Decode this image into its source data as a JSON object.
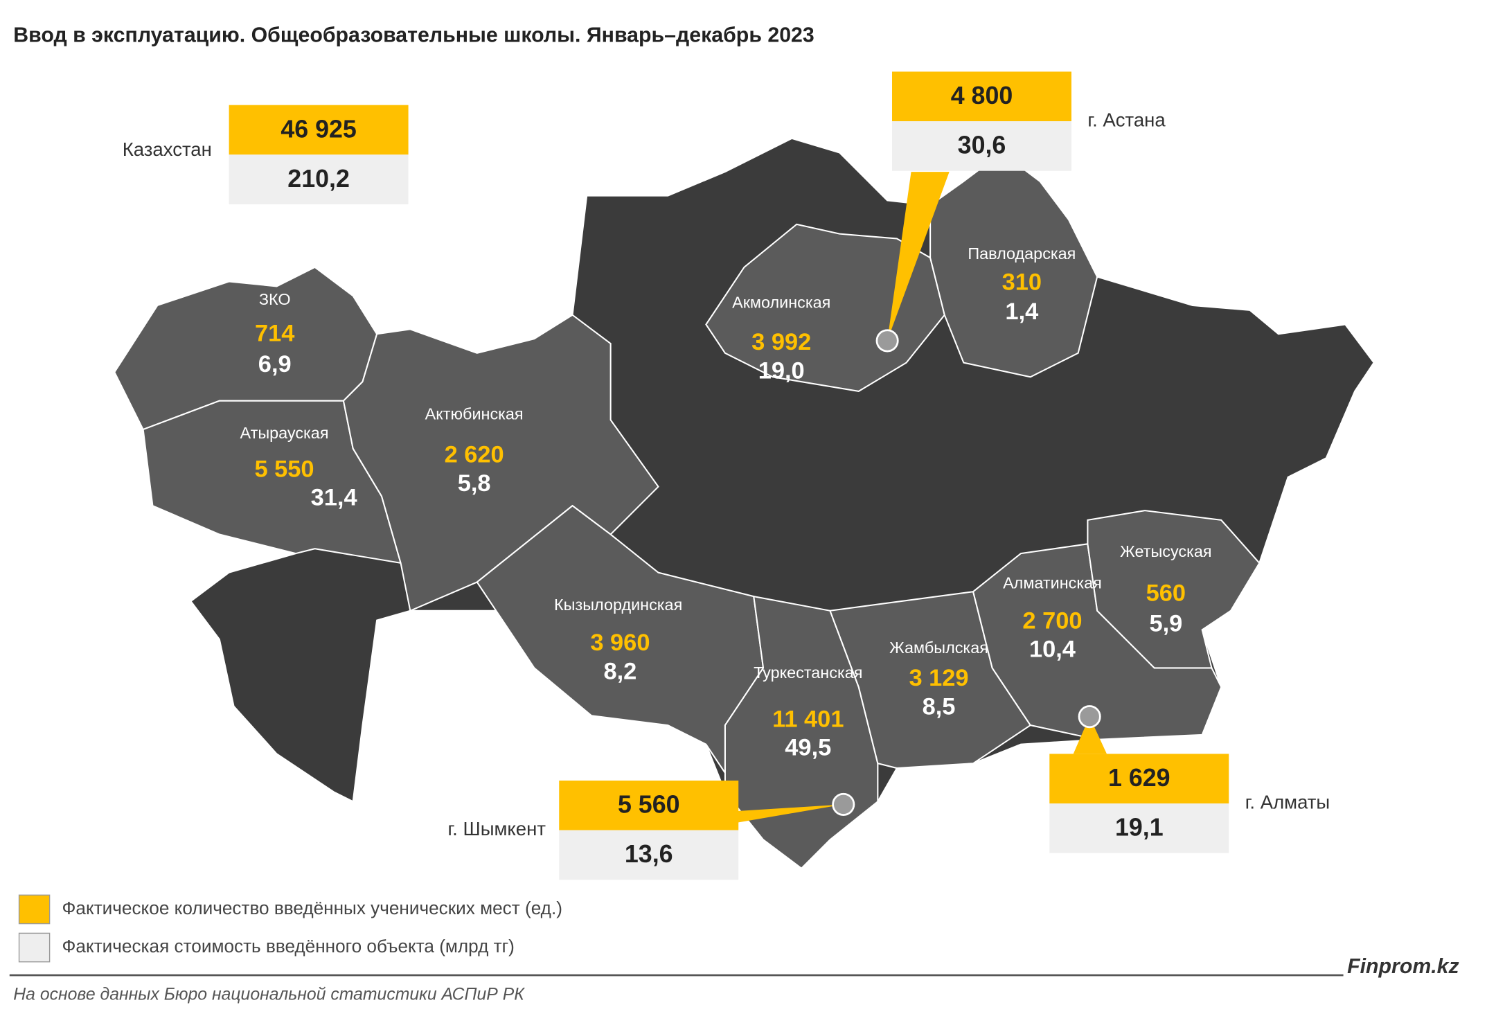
{
  "title": "Ввод в эксплуатацию. Общеобразовательные школы. Январь–декабрь 2023",
  "total": {
    "name": "Казахстан",
    "seats": "46 925",
    "cost": "210,2"
  },
  "cities": [
    {
      "name": "г. Астана",
      "seats": "4 800",
      "cost": "30,6"
    },
    {
      "name": "г. Шымкент",
      "seats": "5 560",
      "cost": "13,6"
    },
    {
      "name": "г. Алматы",
      "seats": "1 629",
      "cost": "19,1"
    }
  ],
  "regions": [
    {
      "name": "ЗКО",
      "seats": "714",
      "cost": "6,9"
    },
    {
      "name": "Атырауская",
      "seats": "5 550",
      "cost": "31,4"
    },
    {
      "name": "Актюбинская",
      "seats": "2 620",
      "cost": "5,8"
    },
    {
      "name": "Акмолинская",
      "seats": "3 992",
      "cost": "19,0"
    },
    {
      "name": "Павлодарская",
      "seats": "310",
      "cost": "1,4"
    },
    {
      "name": "Кызылординская",
      "seats": "3 960",
      "cost": "8,2"
    },
    {
      "name": "Туркестанская",
      "seats": "11 401",
      "cost": "49,5"
    },
    {
      "name": "Жамбылская",
      "seats": "3 129",
      "cost": "8,5"
    },
    {
      "name": "Алматинская",
      "seats": "2 700",
      "cost": "10,4"
    },
    {
      "name": "Жетысуская",
      "seats": "560",
      "cost": "5,9"
    }
  ],
  "legend": [
    "Фактическое количество введённых ученических мест (ед.)",
    "Фактическая стоимость введённого объекта (млрд тг)"
  ],
  "brand": "Finprom.kz",
  "source": "На основе данных Бюро национальной статистики АСПиР РК"
}
